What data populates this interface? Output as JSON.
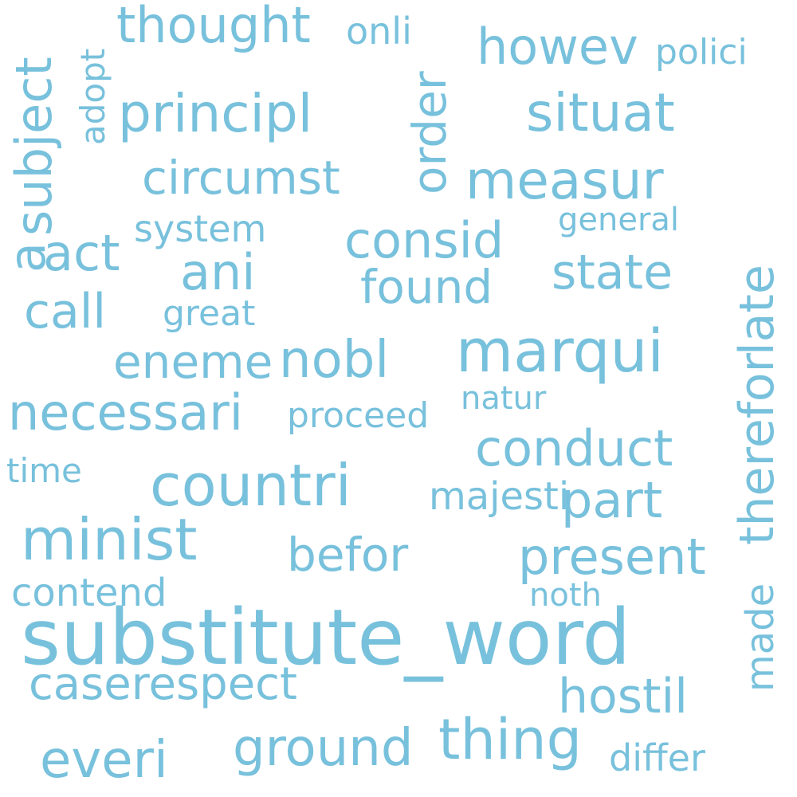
{
  "text_color": "#78C1DC",
  "background_color": "#ffffff",
  "words": [
    "substitute_word",
    "countri",
    "marqui",
    "minist",
    "thing",
    "principl",
    "measur",
    "situat",
    "consid",
    "necessari",
    "conduct",
    "present",
    "ground",
    "everi",
    "howev",
    "nobl",
    "thought",
    "circumst",
    "state",
    "ani",
    "act",
    "call",
    "eneme",
    "found",
    "befor",
    "part",
    "hostil",
    "caserespect",
    "majesti",
    "proceed",
    "differ",
    "polici",
    "onli",
    "great",
    "system",
    "general",
    "natur",
    "time",
    "contend",
    "noth",
    "subject",
    "adopt",
    "order",
    "late",
    "therefor",
    "made",
    "a"
  ]
}
